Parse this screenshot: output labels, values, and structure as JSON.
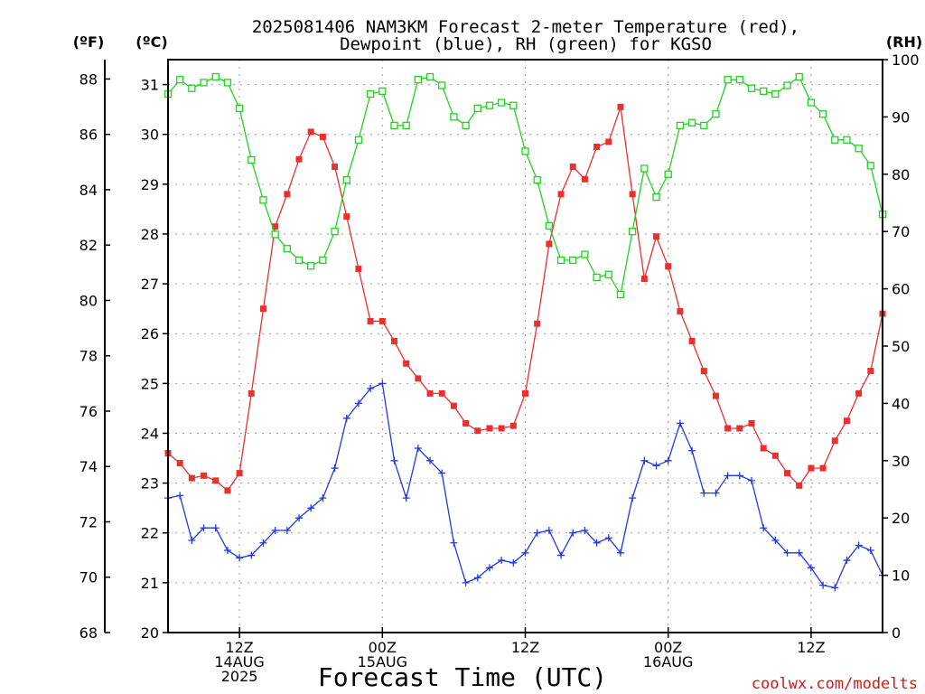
{
  "chart_data": {
    "type": "line",
    "title_line1": "2025081406 NAM3KM Forecast 2-meter Temperature (red),",
    "title_line2": "Dewpoint (blue), RH (green) for KGSO",
    "xlabel": "Forecast Time (UTC)",
    "watermark": "coolwx.com/modelts",
    "units": {
      "fahrenheit": "(ºF)",
      "celsius": "(ºC)",
      "rh": "(RH)"
    },
    "x_ticks": [
      {
        "hour": 12,
        "line1": "12Z",
        "line2": "14AUG",
        "line3": "2025"
      },
      {
        "hour": 24,
        "line1": "00Z",
        "line2": "15AUG",
        "line3": ""
      },
      {
        "hour": 36,
        "line1": "12Z",
        "line2": "",
        "line3": ""
      },
      {
        "hour": 48,
        "line1": "00Z",
        "line2": "16AUG",
        "line3": ""
      },
      {
        "hour": 60,
        "line1": "12Z",
        "line2": "",
        "line3": ""
      }
    ],
    "x_range": [
      6,
      66
    ],
    "f_ticks": [
      "68",
      "70",
      "72",
      "74",
      "76",
      "78",
      "80",
      "82",
      "84",
      "86",
      "88"
    ],
    "c_ticks": [
      "20",
      "21",
      "22",
      "23",
      "24",
      "25",
      "26",
      "27",
      "28",
      "29",
      "30",
      "31"
    ],
    "rh_ticks": [
      "0",
      "10",
      "20",
      "30",
      "40",
      "50",
      "60",
      "70",
      "80",
      "90",
      "100"
    ],
    "ylim_celsius": [
      20,
      31.5
    ],
    "ylim_rh": [
      0,
      100
    ],
    "grid": true,
    "series": [
      {
        "name": "Temperature",
        "unit": "C",
        "color": "#e8312f",
        "marker": "filled-square",
        "x": [
          6,
          7,
          8,
          9,
          10,
          11,
          12,
          13,
          14,
          15,
          16,
          17,
          18,
          19,
          20,
          21,
          22,
          23,
          24,
          25,
          26,
          27,
          28,
          29,
          30,
          31,
          32,
          33,
          34,
          35,
          36,
          37,
          38,
          39,
          40,
          41,
          42,
          43,
          44,
          45,
          46,
          47,
          48,
          49,
          50,
          51,
          52,
          53,
          54,
          55,
          56,
          57,
          58,
          59,
          60,
          61,
          62,
          63,
          64,
          65,
          66
        ],
        "values": [
          23.6,
          23.4,
          23.1,
          23.15,
          23.05,
          22.85,
          23.2,
          24.8,
          26.5,
          28.15,
          28.8,
          29.5,
          30.05,
          29.95,
          29.35,
          28.35,
          27.3,
          26.25,
          26.25,
          25.85,
          25.4,
          25.1,
          24.8,
          24.8,
          24.55,
          24.2,
          24.05,
          24.1,
          24.1,
          24.15,
          24.8,
          26.2,
          27.8,
          28.8,
          29.35,
          29.1,
          29.75,
          29.85,
          30.55,
          28.8,
          27.1,
          27.95,
          27.35,
          26.45,
          25.85,
          25.25,
          24.75,
          24.1,
          24.1,
          24.2,
          23.7,
          23.55,
          23.2,
          22.95,
          23.3,
          23.3,
          23.85,
          24.25,
          24.8,
          25.25,
          26.4
        ]
      },
      {
        "name": "Dewpoint",
        "unit": "C",
        "color": "#1f3be0",
        "marker": "plus",
        "x": [
          6,
          7,
          8,
          9,
          10,
          11,
          12,
          13,
          14,
          15,
          16,
          17,
          18,
          19,
          20,
          21,
          22,
          23,
          24,
          25,
          26,
          27,
          28,
          29,
          30,
          31,
          32,
          33,
          34,
          35,
          36,
          37,
          38,
          39,
          40,
          41,
          42,
          43,
          44,
          45,
          46,
          47,
          48,
          49,
          50,
          51,
          52,
          53,
          54,
          55,
          56,
          57,
          58,
          59,
          60,
          61,
          62,
          63,
          64,
          65,
          66
        ],
        "values": [
          22.7,
          22.75,
          21.85,
          22.1,
          22.1,
          21.65,
          21.5,
          21.55,
          21.8,
          22.05,
          22.05,
          22.3,
          22.5,
          22.7,
          23.3,
          24.3,
          24.6,
          24.9,
          25.0,
          23.45,
          22.7,
          23.7,
          23.45,
          23.2,
          21.8,
          21.0,
          21.1,
          21.3,
          21.45,
          21.4,
          21.6,
          22.0,
          22.05,
          21.55,
          22.0,
          22.05,
          21.8,
          21.9,
          21.6,
          22.7,
          23.45,
          23.35,
          23.45,
          24.2,
          23.65,
          22.8,
          22.8,
          23.15,
          23.15,
          23.05,
          22.1,
          21.85,
          21.6,
          21.6,
          21.3,
          20.95,
          20.9,
          21.45,
          21.75,
          21.65,
          21.15
        ]
      },
      {
        "name": "RH",
        "unit": "%",
        "color": "#1fd41f",
        "marker": "open-square",
        "x": [
          6,
          7,
          8,
          9,
          10,
          11,
          12,
          13,
          14,
          15,
          16,
          17,
          18,
          19,
          20,
          21,
          22,
          23,
          24,
          25,
          26,
          27,
          28,
          29,
          30,
          31,
          32,
          33,
          34,
          35,
          36,
          37,
          38,
          39,
          40,
          41,
          42,
          43,
          44,
          45,
          46,
          47,
          48,
          49,
          50,
          51,
          52,
          53,
          54,
          55,
          56,
          57,
          58,
          59,
          60,
          61,
          62,
          63,
          64,
          65,
          66
        ],
        "values": [
          94,
          96.5,
          95,
          96,
          97,
          96,
          91.5,
          82.5,
          75.5,
          69.5,
          67,
          65,
          64,
          65,
          70,
          79,
          86,
          94,
          94.5,
          88.5,
          88.5,
          96.5,
          97,
          95.5,
          90,
          88.5,
          91.5,
          92,
          92.5,
          92,
          84,
          79,
          71,
          65,
          65,
          66,
          62,
          62.5,
          59,
          70,
          81,
          76,
          80,
          88.5,
          89,
          88.5,
          90.5,
          96.5,
          96.5,
          95,
          94.5,
          94,
          95.5,
          97,
          92.5,
          90.5,
          86,
          86,
          84.5,
          81.5,
          73
        ]
      }
    ]
  }
}
